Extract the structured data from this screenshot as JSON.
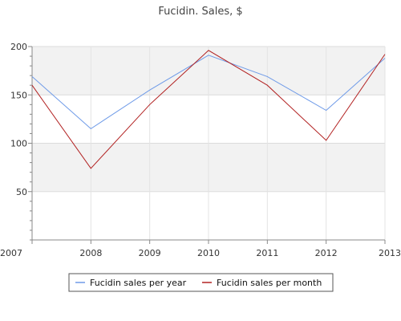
{
  "chart_data": {
    "type": "line",
    "title": "Fucidin. Sales, $",
    "x": [
      "2007",
      "2008",
      "2009",
      "2010",
      "2011",
      "2012",
      "2013"
    ],
    "series": [
      {
        "name": "Fucidin sales per year",
        "color": "#6f9be8",
        "values": [
          169,
          115,
          155,
          191,
          169,
          134,
          188
        ]
      },
      {
        "name": "Fucidin sales per month",
        "color": "#b22222",
        "values": [
          160,
          74,
          140,
          196,
          160,
          103,
          192
        ]
      }
    ],
    "yticks": [
      50,
      100,
      150,
      200
    ],
    "ylim": [
      0,
      200
    ],
    "xlabel": "",
    "ylabel": "",
    "grid": true,
    "banded_background": true,
    "legend_position": "bottom-center"
  }
}
